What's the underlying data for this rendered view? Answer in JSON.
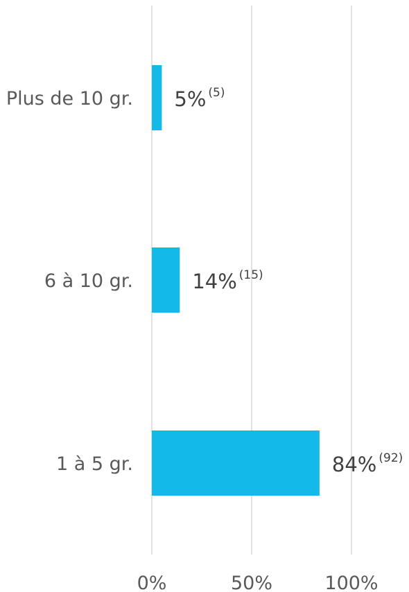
{
  "chart_data": {
    "type": "bar",
    "orientation": "horizontal",
    "categories": [
      "Plus de 10 gr.",
      "6 à 10 gr.",
      "1 à 5 gr."
    ],
    "values": [
      5,
      14,
      84
    ],
    "value_labels": [
      "5%",
      "14%",
      "84%"
    ],
    "counts": [
      5,
      15,
      92
    ],
    "count_labels": [
      "(5)",
      "(15)",
      "(92)"
    ],
    "xlim": [
      0,
      100
    ],
    "xticks": [
      0,
      50,
      100
    ],
    "xtick_labels": [
      "0%",
      "50%",
      "100%"
    ],
    "grid": true,
    "bar_color": "#13B9E8",
    "grid_color": "#D9D9D9",
    "label_color": "#595959"
  }
}
